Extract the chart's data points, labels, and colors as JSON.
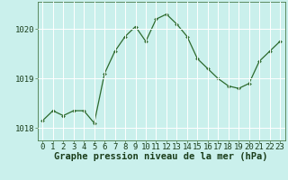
{
  "x": [
    0,
    1,
    2,
    3,
    4,
    5,
    6,
    7,
    8,
    9,
    10,
    11,
    12,
    13,
    14,
    15,
    16,
    17,
    18,
    19,
    20,
    21,
    22,
    23
  ],
  "y": [
    1018.15,
    1018.35,
    1018.25,
    1018.35,
    1018.35,
    1018.1,
    1019.1,
    1019.55,
    1019.85,
    1020.05,
    1019.75,
    1020.2,
    1020.3,
    1020.1,
    1019.85,
    1019.4,
    1019.2,
    1019.0,
    1018.85,
    1018.8,
    1018.9,
    1019.35,
    1019.55,
    1019.75
  ],
  "ylim": [
    1017.75,
    1020.55
  ],
  "yticks": [
    1018,
    1019,
    1020
  ],
  "xticks": [
    0,
    1,
    2,
    3,
    4,
    5,
    6,
    7,
    8,
    9,
    10,
    11,
    12,
    13,
    14,
    15,
    16,
    17,
    18,
    19,
    20,
    21,
    22,
    23
  ],
  "line_color": "#2d6a2d",
  "marker": "D",
  "marker_size": 2.0,
  "bg_color": "#caf0ec",
  "grid_color": "#ffffff",
  "xlabel": "Graphe pression niveau de la mer (hPa)",
  "xlabel_color": "#1a3d1a",
  "tick_color": "#1a3d1a",
  "axis_color": "#4a7a4a",
  "xlabel_fontsize": 7.5,
  "tick_fontsize": 6.5
}
